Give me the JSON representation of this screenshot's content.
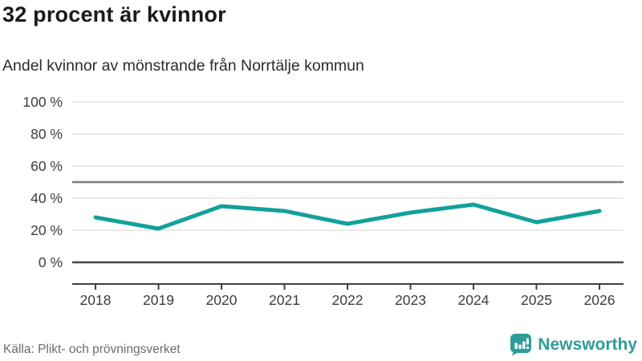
{
  "header": {
    "title": "32 procent är kvinnor",
    "subtitle": "Andel kvinnor av mönstrande från Norrtälje kommun"
  },
  "chart_data": {
    "type": "line",
    "title": "32 procent är kvinnor",
    "subtitle": "Andel kvinnor av mönstrande från Norrtälje kommun",
    "categories": [
      "2018",
      "2019",
      "2020",
      "2021",
      "2022",
      "2023",
      "2024",
      "2025",
      "2026"
    ],
    "values": [
      28,
      21,
      35,
      32,
      24,
      31,
      36,
      25,
      32
    ],
    "series_name": "Andel kvinnor av mönstrande",
    "unit": "%",
    "ylim": [
      0,
      100
    ],
    "y_ticks": [
      0,
      20,
      40,
      60,
      80,
      100
    ],
    "y_tick_suffix": " %",
    "reference_line_y": 50,
    "grid": true,
    "legend": "none",
    "colors": {
      "line": "#12a19a",
      "grid": "#e9e9e9",
      "reference_line": "#7d7d7d",
      "zero_line": "#474747",
      "axis": "#3f3f3f",
      "tick_text": "#3c3c3c"
    }
  },
  "footer": {
    "source": "Källa: Plikt- och prövningsverket",
    "brand": "Newsworthy",
    "brand_color": "#2f9c98",
    "logo_icon": "newsworthy-logo-icon"
  }
}
